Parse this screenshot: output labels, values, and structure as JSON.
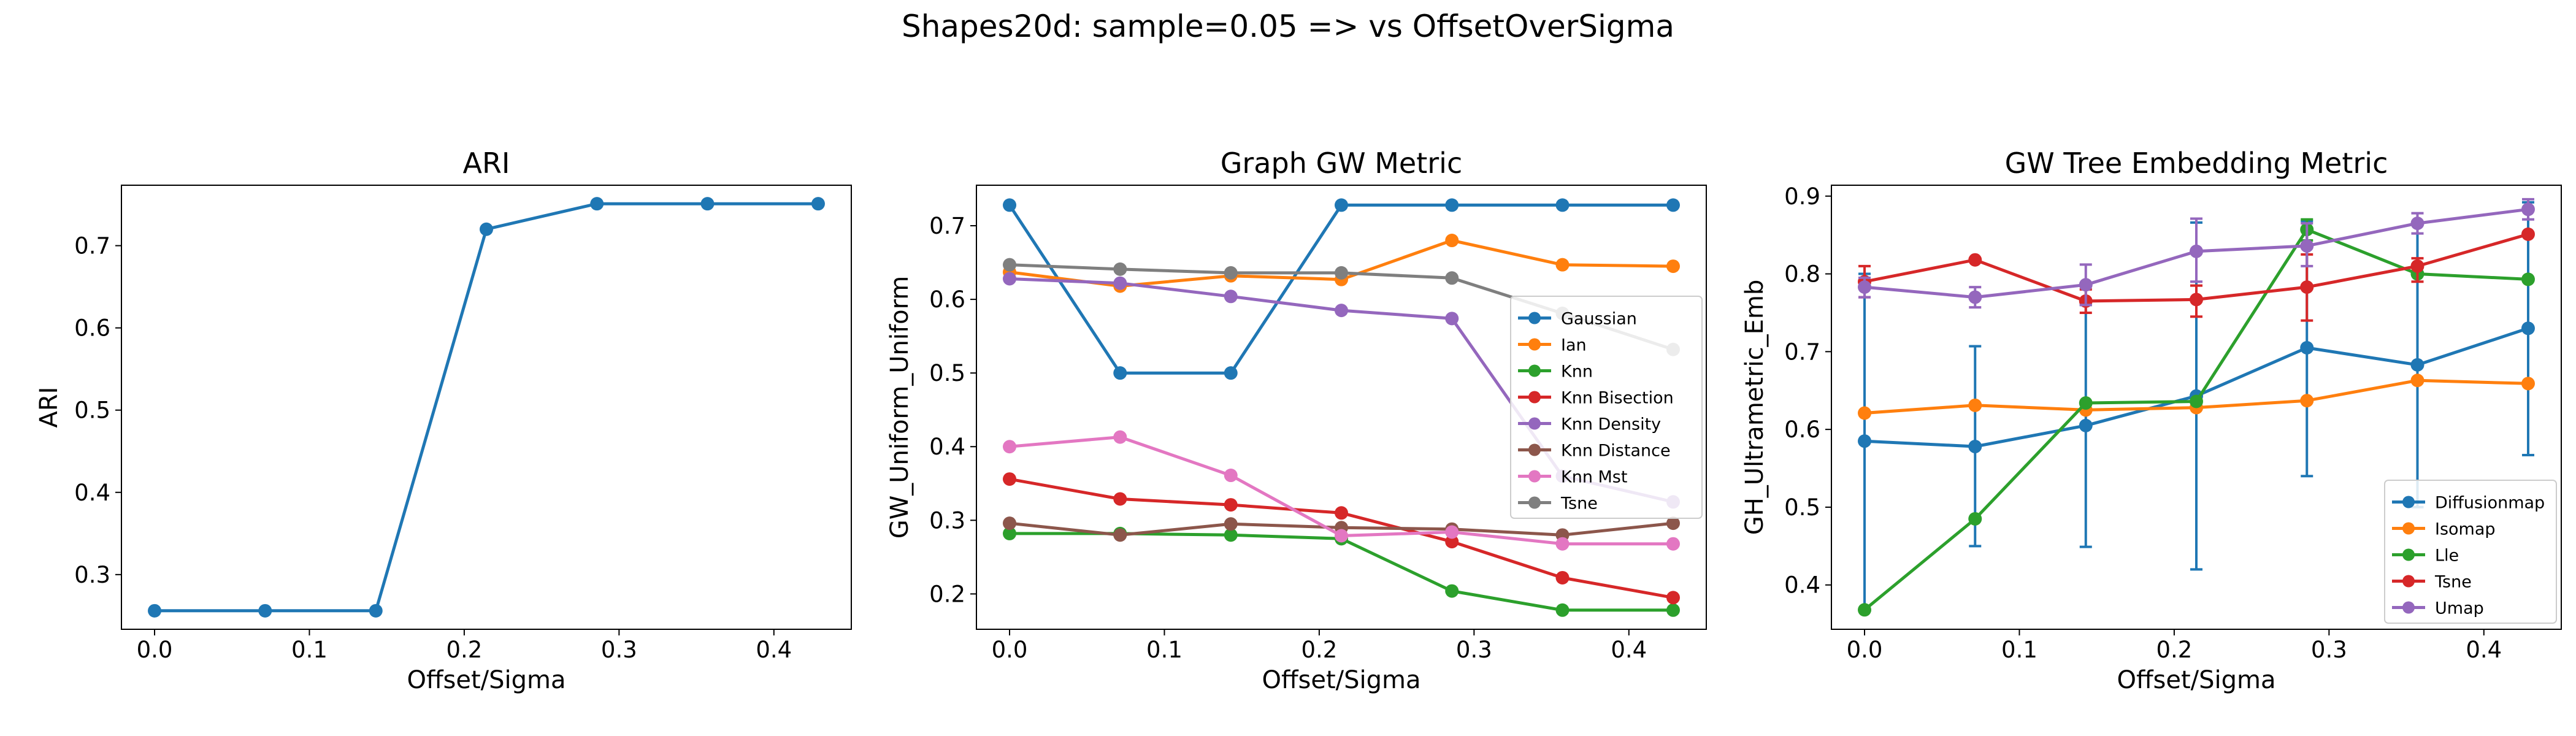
{
  "figure": {
    "suptitle": "Shapes20d: sample=0.05 => vs OffsetOverSigma"
  },
  "colors": [
    "#1f77b4",
    "#ff7f0e",
    "#2ca02c",
    "#d62728",
    "#9467bd",
    "#8c564b",
    "#e377c2",
    "#7f7f7f"
  ],
  "chart_data": [
    {
      "type": "line",
      "title": "ARI",
      "xlabel": "Offset/Sigma",
      "ylabel": "ARI",
      "xlim": [
        -0.0214,
        0.45
      ],
      "ylim": [
        0.2335,
        0.7735
      ],
      "xticks": [
        0.0,
        0.1,
        0.2,
        0.3,
        0.4
      ],
      "xtick_labels": [
        "0.0",
        "0.1",
        "0.2",
        "0.3",
        "0.4"
      ],
      "yticks": [
        0.3,
        0.4,
        0.5,
        0.6,
        0.7
      ],
      "ytick_labels": [
        "0.3",
        "0.4",
        "0.5",
        "0.6",
        "0.7"
      ],
      "x": [
        0.0,
        0.0714,
        0.1429,
        0.2143,
        0.2857,
        0.3571,
        0.4286
      ],
      "series": [
        {
          "values": [
            0.256,
            0.256,
            0.256,
            0.72,
            0.751,
            0.751,
            0.751
          ],
          "color": "#1f77b4"
        }
      ]
    },
    {
      "type": "line",
      "title": "Graph GW Metric",
      "xlabel": "Offset/Sigma",
      "ylabel": "GW_Uniform_Uniform",
      "xlim": [
        -0.0214,
        0.45
      ],
      "ylim": [
        0.152,
        0.755
      ],
      "legend": "right",
      "xticks": [
        0.0,
        0.1,
        0.2,
        0.3,
        0.4
      ],
      "xtick_labels": [
        "0.0",
        "0.1",
        "0.2",
        "0.3",
        "0.4"
      ],
      "yticks": [
        0.2,
        0.3,
        0.4,
        0.5,
        0.6,
        0.7
      ],
      "ytick_labels": [
        "0.2",
        "0.3",
        "0.4",
        "0.5",
        "0.6",
        "0.7"
      ],
      "x": [
        0.0,
        0.0714,
        0.1429,
        0.2143,
        0.2857,
        0.3571,
        0.4286
      ],
      "series": [
        {
          "name": "Gaussian",
          "values": [
            0.728,
            0.5,
            0.5,
            0.728,
            0.728,
            0.728,
            0.728
          ],
          "color": "#1f77b4"
        },
        {
          "name": "Ian",
          "values": [
            0.637,
            0.618,
            0.632,
            0.627,
            0.68,
            0.647,
            0.645
          ],
          "color": "#ff7f0e"
        },
        {
          "name": "Knn",
          "values": [
            0.282,
            0.282,
            0.28,
            0.275,
            0.204,
            0.178,
            0.178
          ],
          "color": "#2ca02c"
        },
        {
          "name": "Knn Bisection",
          "values": [
            0.356,
            0.329,
            0.321,
            0.31,
            0.271,
            0.222,
            0.195
          ],
          "color": "#d62728"
        },
        {
          "name": "Knn Density",
          "values": [
            0.628,
            0.622,
            0.604,
            0.585,
            0.574,
            0.36,
            0.325
          ],
          "color": "#9467bd"
        },
        {
          "name": "Knn Distance",
          "values": [
            0.296,
            0.28,
            0.295,
            0.29,
            0.288,
            0.28,
            0.296
          ],
          "color": "#8c564b"
        },
        {
          "name": "Knn Mst",
          "values": [
            0.4,
            0.413,
            0.361,
            0.279,
            0.284,
            0.268,
            0.268
          ],
          "color": "#e377c2"
        },
        {
          "name": "Tsne",
          "values": [
            0.647,
            0.641,
            0.636,
            0.636,
            0.629,
            0.581,
            0.532
          ],
          "color": "#7f7f7f"
        }
      ]
    },
    {
      "type": "line",
      "title": "GW Tree Embedding Metric",
      "xlabel": "Offset/Sigma",
      "ylabel": "GH_Ultrametric_Emb",
      "xlim": [
        -0.0214,
        0.45
      ],
      "ylim": [
        0.343,
        0.914
      ],
      "legend": "lower right",
      "error_bars": true,
      "xticks": [
        0.0,
        0.1,
        0.2,
        0.3,
        0.4
      ],
      "xtick_labels": [
        "0.0",
        "0.1",
        "0.2",
        "0.3",
        "0.4"
      ],
      "yticks": [
        0.4,
        0.5,
        0.6,
        0.7,
        0.8,
        0.9
      ],
      "ytick_labels": [
        "0.4",
        "0.5",
        "0.6",
        "0.7",
        "0.8",
        "0.9"
      ],
      "x": [
        0.0,
        0.0714,
        0.1429,
        0.2143,
        0.2857,
        0.3571,
        0.4286
      ],
      "series": [
        {
          "name": "Diffusionmap",
          "values": [
            0.585,
            0.578,
            0.605,
            0.643,
            0.705,
            0.683,
            0.73
          ],
          "err_low": [
            0.37,
            0.45,
            0.449,
            0.42,
            0.54,
            0.5,
            0.567
          ],
          "err_high": [
            0.8,
            0.707,
            0.76,
            0.866,
            0.868,
            0.865,
            0.892
          ],
          "color": "#1f77b4"
        },
        {
          "name": "Isomap",
          "values": [
            0.621,
            0.631,
            0.625,
            0.628,
            0.637,
            0.663,
            0.659
          ],
          "err_low": [
            0.621,
            0.631,
            0.625,
            0.628,
            0.637,
            0.663,
            0.659
          ],
          "err_high": [
            0.621,
            0.631,
            0.625,
            0.628,
            0.637,
            0.663,
            0.659
          ],
          "color": "#ff7f0e"
        },
        {
          "name": "Lle",
          "values": [
            0.368,
            0.485,
            0.634,
            0.636,
            0.857,
            0.8,
            0.793
          ],
          "err_low": [
            0.368,
            0.485,
            0.634,
            0.636,
            0.843,
            0.8,
            0.793
          ],
          "err_high": [
            0.368,
            0.485,
            0.634,
            0.636,
            0.87,
            0.8,
            0.793
          ],
          "color": "#2ca02c"
        },
        {
          "name": "Tsne",
          "values": [
            0.79,
            0.818,
            0.765,
            0.767,
            0.783,
            0.81,
            0.851
          ],
          "err_low": [
            0.77,
            0.818,
            0.75,
            0.745,
            0.74,
            0.79,
            0.851
          ],
          "err_high": [
            0.81,
            0.818,
            0.78,
            0.785,
            0.825,
            0.82,
            0.851
          ],
          "color": "#d62728"
        },
        {
          "name": "Umap",
          "values": [
            0.783,
            0.77,
            0.786,
            0.829,
            0.836,
            0.865,
            0.883
          ],
          "err_low": [
            0.77,
            0.757,
            0.76,
            0.79,
            0.81,
            0.852,
            0.87
          ],
          "err_high": [
            0.795,
            0.783,
            0.812,
            0.871,
            0.865,
            0.878,
            0.896
          ],
          "color": "#9467bd"
        }
      ]
    }
  ]
}
